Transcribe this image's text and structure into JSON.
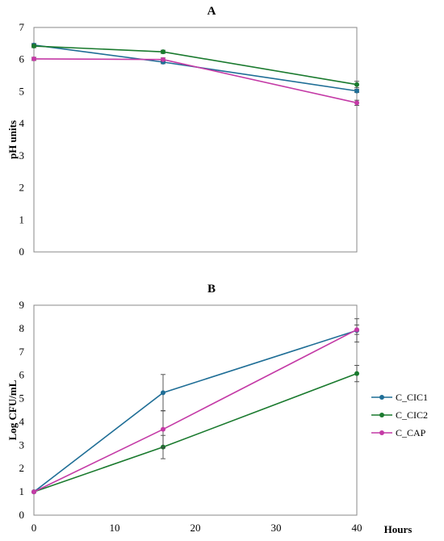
{
  "chart_data": [
    {
      "type": "line",
      "title": "A",
      "ylabel": "pH units",
      "xlabel": "",
      "ylim": [
        0,
        7
      ],
      "yticks": [
        0,
        1,
        2,
        3,
        4,
        5,
        6,
        7
      ],
      "xlim": [
        0,
        40
      ],
      "x": [
        0,
        16,
        40
      ],
      "grid": false,
      "series": [
        {
          "name": "C_CIC1",
          "color": "#1f6e96",
          "values": [
            6.45,
            5.92,
            5.02
          ],
          "errors": [
            0.05,
            0.05,
            0.05
          ]
        },
        {
          "name": "C_CIC2",
          "color": "#1a7a2e",
          "values": [
            6.42,
            6.24,
            5.22
          ],
          "errors": [
            0.05,
            0.05,
            0.1
          ]
        },
        {
          "name": "C_CAP",
          "color": "#c43aa6",
          "values": [
            6.02,
            6.0,
            4.65
          ],
          "errors": [
            0.05,
            0.05,
            0.08
          ]
        }
      ]
    },
    {
      "type": "line",
      "title": "B",
      "ylabel": "Log CFU/mL",
      "xlabel": "Hours",
      "ylim": [
        0,
        9
      ],
      "yticks": [
        0,
        1,
        2,
        3,
        4,
        5,
        6,
        7,
        8,
        9
      ],
      "xlim": [
        0,
        40
      ],
      "xticks": [
        0,
        10,
        20,
        30,
        40
      ],
      "x": [
        0,
        16,
        40
      ],
      "grid": false,
      "legend": "right",
      "series": [
        {
          "name": "C_CIC1",
          "color": "#1f6e96",
          "values": [
            1.0,
            5.25,
            7.92
          ],
          "errors": [
            0.0,
            0.78,
            0.5
          ]
        },
        {
          "name": "C_CIC2",
          "color": "#1a7a2e",
          "values": [
            1.0,
            2.92,
            6.07
          ],
          "errors": [
            0.0,
            0.5,
            0.35
          ]
        },
        {
          "name": "C_CAP",
          "color": "#c43aa6",
          "values": [
            1.0,
            3.68,
            7.95
          ],
          "errors": [
            0.0,
            0.8,
            0.2
          ]
        }
      ]
    }
  ]
}
